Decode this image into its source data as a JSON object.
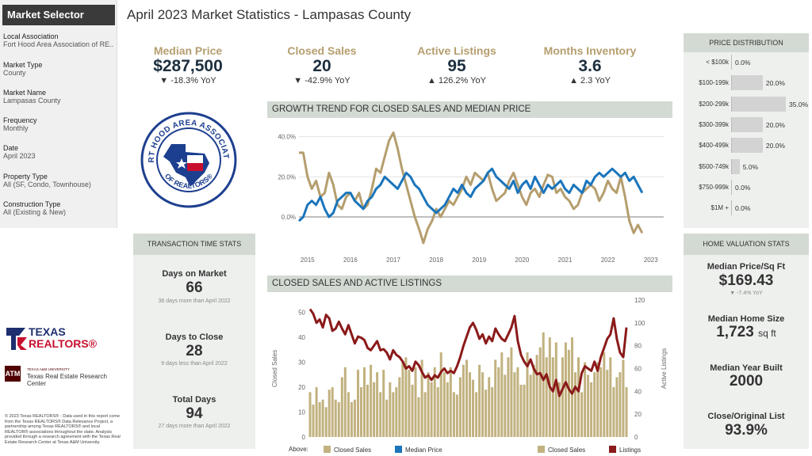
{
  "sidebar": {
    "title": "Market Selector",
    "filters": [
      {
        "label": "Local Association",
        "value": "Fort Hood Area Association of RE.."
      },
      {
        "label": "Market Type",
        "value": "County"
      },
      {
        "label": "Market Name",
        "value": "Lampasas County"
      },
      {
        "label": "Frequency",
        "value": "Monthly"
      },
      {
        "label": "Date",
        "value": "April 2023"
      },
      {
        "label": "Property Type",
        "value": "All (SF, Condo, Townhouse)"
      },
      {
        "label": "Construction Type",
        "value": "All (Existing & New)"
      }
    ]
  },
  "page_title": "April 2023 Market Statistics - Lampasas County",
  "kpis": [
    {
      "label": "Median Price",
      "value": "$287,500",
      "yoy": "▼ -18.3% YoY"
    },
    {
      "label": "Closed Sales",
      "value": "20",
      "yoy": "▼ -42.9% YoY"
    },
    {
      "label": "Active Listings",
      "value": "95",
      "yoy": "▲ 126.2% YoY"
    },
    {
      "label": "Months Inventory",
      "value": "3.6",
      "yoy": "▲ 2.3 YoY"
    }
  ],
  "logo": {
    "ring_top": "FORT HOOD AREA ASSOCIATION",
    "ring_bottom": "OF REALTORS®"
  },
  "branding": {
    "texas": "TEXAS",
    "realtors": "REALTORS®",
    "tamu_small": "TEXAS A&M UNIVERSITY",
    "tamu": "Texas Real Estate Research Center"
  },
  "footer": "© 2023 Texas REALTORS® - Data used in this report come from the Texas REALTORS® Data Relevance Project, a partnership among Texas REALTORS® and local REALTOR® associations throughout the state. Analysis provided through a research agreement with the Texas Real Estate Research Center at Texas A&M University.",
  "transaction": {
    "title": "TRANSACTION TIME STATS",
    "items": [
      {
        "label": "Days on Market",
        "value": "66",
        "sub": "36 days more than April 2022"
      },
      {
        "label": "Days to Close",
        "value": "28",
        "sub": "9 days less than April 2022"
      },
      {
        "label": "Total Days",
        "value": "94",
        "sub": "27 days more than April 2022"
      }
    ]
  },
  "growth": {
    "title": "GROWTH TREND FOR CLOSED SALES AND MEDIAN PRICE"
  },
  "closed": {
    "title": "CLOSED SALES AND ACTIVE LISTINGS",
    "legend": {
      "above": "Above:",
      "closed": "Closed Sales",
      "median": "Median Price",
      "closed2": "Closed Sales",
      "listings": "Listings"
    }
  },
  "price_dist": {
    "title": "PRICE DISTRIBUTION",
    "rows": [
      {
        "label": "< $100k",
        "pct": "0.0%",
        "v": 0
      },
      {
        "label": "$100-199k",
        "pct": "20.0%",
        "v": 20
      },
      {
        "label": "$200-299k",
        "pct": "35.0%",
        "v": 35
      },
      {
        "label": "$300-399k",
        "pct": "20.0%",
        "v": 20
      },
      {
        "label": "$400-499k",
        "pct": "20.0%",
        "v": 20
      },
      {
        "label": "$500-749k",
        "pct": "5.0%",
        "v": 5
      },
      {
        "label": "$750-999k",
        "pct": "0.0%",
        "v": 0
      },
      {
        "label": "$1M +",
        "pct": "0.0%",
        "v": 0
      }
    ]
  },
  "valuation": {
    "title": "HOME VALUATION STATS",
    "ppsf_label": "Median Price/Sq Ft",
    "ppsf": "$169.43",
    "ppsf_sub": "▼ -7.4% YoY",
    "size_label": "Median Home Size",
    "size": "1,723",
    "size_unit": "sq ft",
    "year_label": "Median Year Built",
    "year": "2000",
    "col_label": "Close/Original List",
    "col": "93.9%"
  },
  "colors": {
    "gold": "#b59e6e",
    "blue": "#1b75bb",
    "maroon": "#8b1a1a",
    "tan": "#c2b280"
  },
  "chart_data": [
    {
      "type": "line",
      "title": "GROWTH TREND FOR CLOSED SALES AND MEDIAN PRICE",
      "x_ticks": [
        "2015",
        "2016",
        "2017",
        "2018",
        "2019",
        "2020",
        "2021",
        "2022",
        "2023"
      ],
      "y_ticks": [
        "40.0%",
        "20.0%",
        "0.0%"
      ],
      "ylim": [
        -15,
        45
      ],
      "x_range": [
        2014.8,
        2023.3
      ],
      "series": [
        {
          "name": "Closed Sales",
          "color": "#b59e6e",
          "points": [
            [
              2014.8,
              32
            ],
            [
              2014.9,
              32
            ],
            [
              2015.0,
              20
            ],
            [
              2015.1,
              14
            ],
            [
              2015.2,
              18
            ],
            [
              2015.3,
              10
            ],
            [
              2015.4,
              12
            ],
            [
              2015.5,
              22
            ],
            [
              2015.6,
              16
            ],
            [
              2015.7,
              6
            ],
            [
              2015.8,
              4
            ],
            [
              2015.9,
              10
            ],
            [
              2016.0,
              12
            ],
            [
              2016.1,
              8
            ],
            [
              2016.2,
              12
            ],
            [
              2016.3,
              4
            ],
            [
              2016.4,
              6
            ],
            [
              2016.5,
              14
            ],
            [
              2016.6,
              24
            ],
            [
              2016.7,
              22
            ],
            [
              2016.8,
              30
            ],
            [
              2016.9,
              38
            ],
            [
              2017.0,
              42
            ],
            [
              2017.1,
              34
            ],
            [
              2017.2,
              24
            ],
            [
              2017.3,
              16
            ],
            [
              2017.4,
              8
            ],
            [
              2017.5,
              0
            ],
            [
              2017.6,
              -6
            ],
            [
              2017.7,
              -13
            ],
            [
              2017.8,
              -6
            ],
            [
              2017.9,
              -2
            ],
            [
              2018.0,
              4
            ],
            [
              2018.1,
              0
            ],
            [
              2018.2,
              4
            ],
            [
              2018.3,
              8
            ],
            [
              2018.4,
              6
            ],
            [
              2018.5,
              10
            ],
            [
              2018.6,
              14
            ],
            [
              2018.7,
              20
            ],
            [
              2018.8,
              16
            ],
            [
              2018.9,
              22
            ],
            [
              2019.0,
              20
            ],
            [
              2019.1,
              18
            ],
            [
              2019.2,
              22
            ],
            [
              2019.3,
              14
            ],
            [
              2019.4,
              8
            ],
            [
              2019.5,
              10
            ],
            [
              2019.6,
              12
            ],
            [
              2019.7,
              18
            ],
            [
              2019.8,
              22
            ],
            [
              2019.9,
              16
            ],
            [
              2020.0,
              10
            ],
            [
              2020.1,
              6
            ],
            [
              2020.2,
              12
            ],
            [
              2020.3,
              14
            ],
            [
              2020.4,
              10
            ],
            [
              2020.5,
              16
            ],
            [
              2020.6,
              21
            ],
            [
              2020.7,
              20
            ],
            [
              2020.8,
              12
            ],
            [
              2020.9,
              14
            ],
            [
              2021.0,
              10
            ],
            [
              2021.1,
              8
            ],
            [
              2021.2,
              4
            ],
            [
              2021.3,
              6
            ],
            [
              2021.4,
              12
            ],
            [
              2021.5,
              14
            ],
            [
              2021.6,
              16
            ],
            [
              2021.7,
              14
            ],
            [
              2021.8,
              8
            ],
            [
              2021.9,
              12
            ],
            [
              2022.0,
              18
            ],
            [
              2022.1,
              14
            ],
            [
              2022.2,
              12
            ],
            [
              2022.3,
              20
            ],
            [
              2022.4,
              10
            ],
            [
              2022.5,
              -2
            ],
            [
              2022.6,
              -8
            ],
            [
              2022.7,
              -4
            ],
            [
              2022.8,
              -8
            ]
          ]
        },
        {
          "name": "Median Price",
          "color": "#1b75bb",
          "points": [
            [
              2014.8,
              -2
            ],
            [
              2014.9,
              0
            ],
            [
              2015.0,
              6
            ],
            [
              2015.1,
              8
            ],
            [
              2015.2,
              6
            ],
            [
              2015.3,
              10
            ],
            [
              2015.4,
              4
            ],
            [
              2015.5,
              0
            ],
            [
              2015.6,
              2
            ],
            [
              2015.7,
              8
            ],
            [
              2015.8,
              10
            ],
            [
              2015.9,
              12
            ],
            [
              2016.0,
              12
            ],
            [
              2016.1,
              8
            ],
            [
              2016.2,
              6
            ],
            [
              2016.3,
              4
            ],
            [
              2016.4,
              8
            ],
            [
              2016.5,
              10
            ],
            [
              2016.6,
              14
            ],
            [
              2016.7,
              16
            ],
            [
              2016.8,
              20
            ],
            [
              2016.9,
              18
            ],
            [
              2017.0,
              16
            ],
            [
              2017.1,
              14
            ],
            [
              2017.2,
              18
            ],
            [
              2017.3,
              22
            ],
            [
              2017.4,
              20
            ],
            [
              2017.5,
              16
            ],
            [
              2017.6,
              14
            ],
            [
              2017.7,
              10
            ],
            [
              2017.8,
              6
            ],
            [
              2017.9,
              4
            ],
            [
              2018.0,
              2
            ],
            [
              2018.1,
              4
            ],
            [
              2018.2,
              6
            ],
            [
              2018.3,
              10
            ],
            [
              2018.4,
              14
            ],
            [
              2018.5,
              12
            ],
            [
              2018.6,
              16
            ],
            [
              2018.7,
              12
            ],
            [
              2018.8,
              10
            ],
            [
              2018.9,
              14
            ],
            [
              2019.0,
              16
            ],
            [
              2019.1,
              18
            ],
            [
              2019.2,
              22
            ],
            [
              2019.3,
              24
            ],
            [
              2019.4,
              20
            ],
            [
              2019.5,
              18
            ],
            [
              2019.6,
              16
            ],
            [
              2019.7,
              14
            ],
            [
              2019.8,
              18
            ],
            [
              2019.9,
              12
            ],
            [
              2020.0,
              16
            ],
            [
              2020.1,
              18
            ],
            [
              2020.2,
              14
            ],
            [
              2020.3,
              20
            ],
            [
              2020.4,
              16
            ],
            [
              2020.5,
              12
            ],
            [
              2020.6,
              16
            ],
            [
              2020.7,
              14
            ],
            [
              2020.8,
              16
            ],
            [
              2020.9,
              18
            ],
            [
              2021.0,
              14
            ],
            [
              2021.1,
              12
            ],
            [
              2021.2,
              16
            ],
            [
              2021.3,
              14
            ],
            [
              2021.4,
              12
            ],
            [
              2021.5,
              18
            ],
            [
              2021.6,
              16
            ],
            [
              2021.7,
              20
            ],
            [
              2021.8,
              22
            ],
            [
              2021.9,
              20
            ],
            [
              2022.0,
              22
            ],
            [
              2022.1,
              24
            ],
            [
              2022.2,
              22
            ],
            [
              2022.3,
              20
            ],
            [
              2022.4,
              22
            ],
            [
              2022.5,
              18
            ],
            [
              2022.6,
              20
            ],
            [
              2022.7,
              16
            ],
            [
              2022.8,
              12
            ]
          ]
        }
      ]
    },
    {
      "type": "bar",
      "title": "CLOSED SALES AND ACTIVE LISTINGS",
      "ylabel": "Closed Sales",
      "y2label": "Active Listings",
      "ylim": [
        0,
        55
      ],
      "y2lim": [
        0,
        120
      ],
      "y_ticks": [
        "0",
        "10",
        "20",
        "30",
        "40",
        "50"
      ],
      "y2_ticks": [
        "0",
        "20",
        "40",
        "60",
        "80",
        "100",
        "120"
      ],
      "series": [
        {
          "name": "Closed Sales",
          "color": "#c2b280",
          "values": [
            18,
            13,
            20,
            14,
            15,
            12,
            19,
            20,
            15,
            14,
            24,
            28,
            18,
            14,
            15,
            27,
            20,
            28,
            21,
            29,
            22,
            26,
            18,
            27,
            15,
            22,
            18,
            20,
            24,
            30,
            32,
            27,
            21,
            28,
            16,
            31,
            18,
            26,
            22,
            28,
            20,
            34,
            26,
            22,
            28,
            18,
            17,
            24,
            29,
            31,
            26,
            23,
            18,
            29,
            26,
            19,
            24,
            20,
            31,
            28,
            34,
            25,
            32,
            36,
            26,
            28,
            21,
            21,
            34,
            25,
            29,
            33,
            36,
            42,
            32,
            40,
            32,
            38,
            22,
            32,
            38,
            35,
            40,
            26,
            32,
            18,
            30,
            25,
            22,
            26,
            30,
            28,
            34,
            27,
            32,
            20,
            24,
            26,
            31,
            20
          ]
        },
        {
          "name": "Listings",
          "color": "#8b1a1a",
          "values": [
            112,
            108,
            100,
            103,
            96,
            107,
            104,
            93,
            95,
            101,
            95,
            90,
            98,
            90,
            82,
            88,
            87,
            85,
            78,
            76,
            80,
            84,
            76,
            77,
            74,
            68,
            76,
            72,
            70,
            66,
            60,
            62,
            58,
            66,
            63,
            57,
            52,
            54,
            50,
            54,
            52,
            57,
            60,
            56,
            58,
            56,
            62,
            70,
            80,
            88,
            96,
            100,
            94,
            86,
            90,
            82,
            88,
            84,
            95,
            90,
            86,
            84,
            90,
            96,
            106,
            84,
            72,
            66,
            62,
            68,
            60,
            55,
            56,
            50,
            55,
            44,
            40,
            50,
            36,
            42,
            48,
            42,
            38,
            44,
            40,
            56,
            62,
            60,
            58,
            66,
            58,
            70,
            78,
            86,
            90,
            104,
            86,
            74,
            70,
            96
          ]
        }
      ]
    },
    {
      "type": "bar",
      "title": "PRICE DISTRIBUTION",
      "categories": [
        "< $100k",
        "$100-199k",
        "$200-299k",
        "$300-399k",
        "$400-499k",
        "$500-749k",
        "$750-999k",
        "$1M +"
      ],
      "values": [
        0,
        20,
        35,
        20,
        20,
        5,
        0,
        0
      ]
    }
  ]
}
